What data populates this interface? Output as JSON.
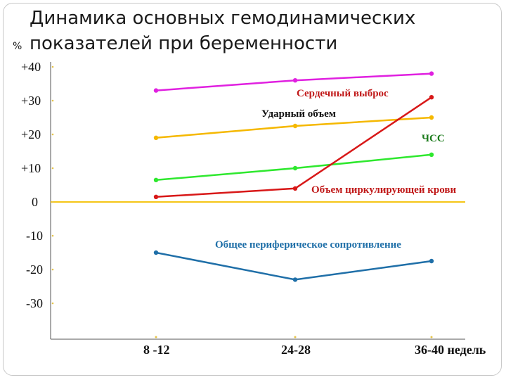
{
  "title_lines": [
    "Динамика основных гемодинамических",
    "показателей при беременности"
  ],
  "y_unit": "%",
  "chart_data": {
    "type": "line",
    "title": "Динамика основных гемодинамических показателей при беременности",
    "ylabel": "%",
    "xlabel": "",
    "categories": [
      "8 -12",
      "24-28",
      "36-40 недель"
    ],
    "y_ticks": [
      "+40",
      "+30",
      "+20",
      "+10",
      "0",
      "-10",
      "-20",
      "-30"
    ],
    "y_tick_values": [
      40,
      30,
      20,
      10,
      0,
      -10,
      -20,
      -30
    ],
    "ylim": [
      -40,
      40
    ],
    "grid": false,
    "baseline_color": "#f5c518",
    "series": [
      {
        "name": "Сердечный выброс",
        "color": "#e020e0",
        "label_color": "#c01818",
        "values": [
          33,
          36,
          38
        ]
      },
      {
        "name": "Ударный объем",
        "color": "#f5b800",
        "label_color": "#111111",
        "values": [
          19,
          22.5,
          25
        ]
      },
      {
        "name": "ЧСС",
        "color": "#2ee82e",
        "label_color": "#1a7a1a",
        "values": [
          6.5,
          10,
          14
        ]
      },
      {
        "name": "Объем циркулирующей крови",
        "color": "#d81818",
        "label_color": "#c01818",
        "values": [
          1.5,
          4,
          31
        ]
      },
      {
        "name": "Общее периферическое сопротивление",
        "color": "#1f6fa8",
        "label_color": "#1f6fa8",
        "values": [
          -15,
          -23,
          -17.5
        ]
      }
    ]
  }
}
